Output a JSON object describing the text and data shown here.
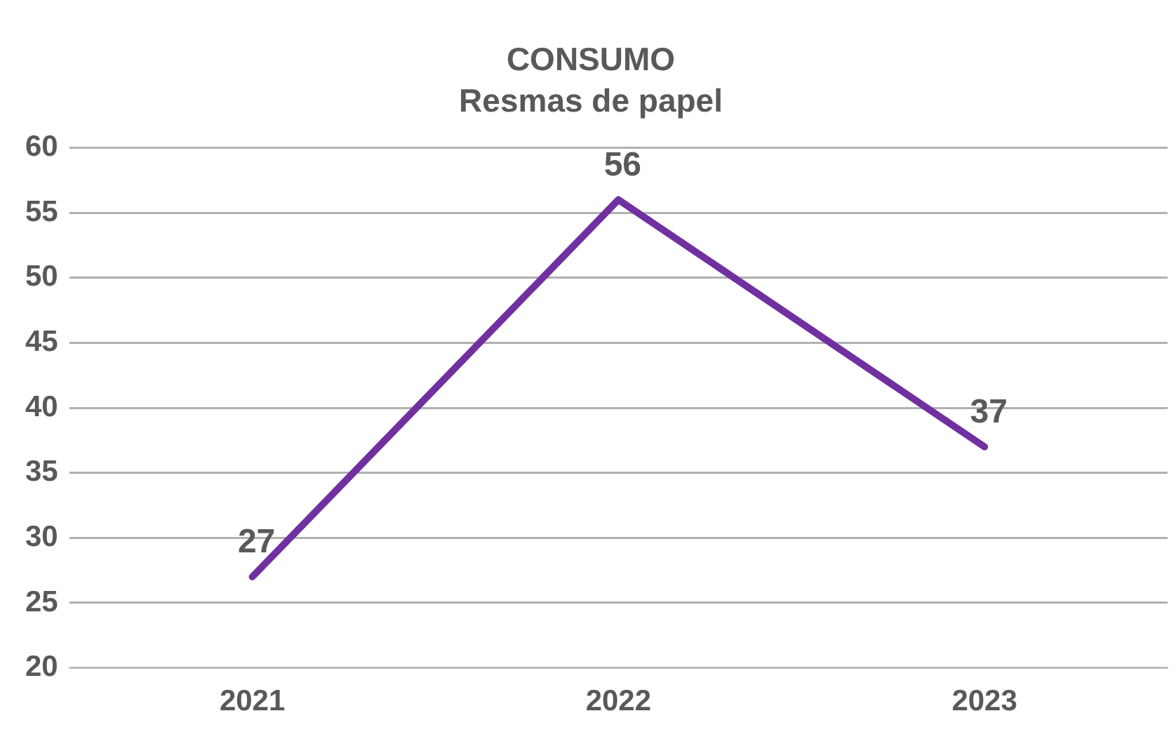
{
  "chart_data": {
    "type": "line",
    "title": "CONSUMO",
    "subtitle": "Resmas de papel",
    "categories": [
      "2021",
      "2022",
      "2023"
    ],
    "series": [
      {
        "color": "#7030a0",
        "values": [
          27,
          56,
          37
        ]
      }
    ],
    "ylim": [
      20,
      60
    ],
    "yticks": [
      20,
      25,
      30,
      35,
      40,
      45,
      50,
      55,
      60
    ],
    "grid": "y",
    "legend": false,
    "marker": "none",
    "line_style": "solid",
    "data_labels": true
  }
}
